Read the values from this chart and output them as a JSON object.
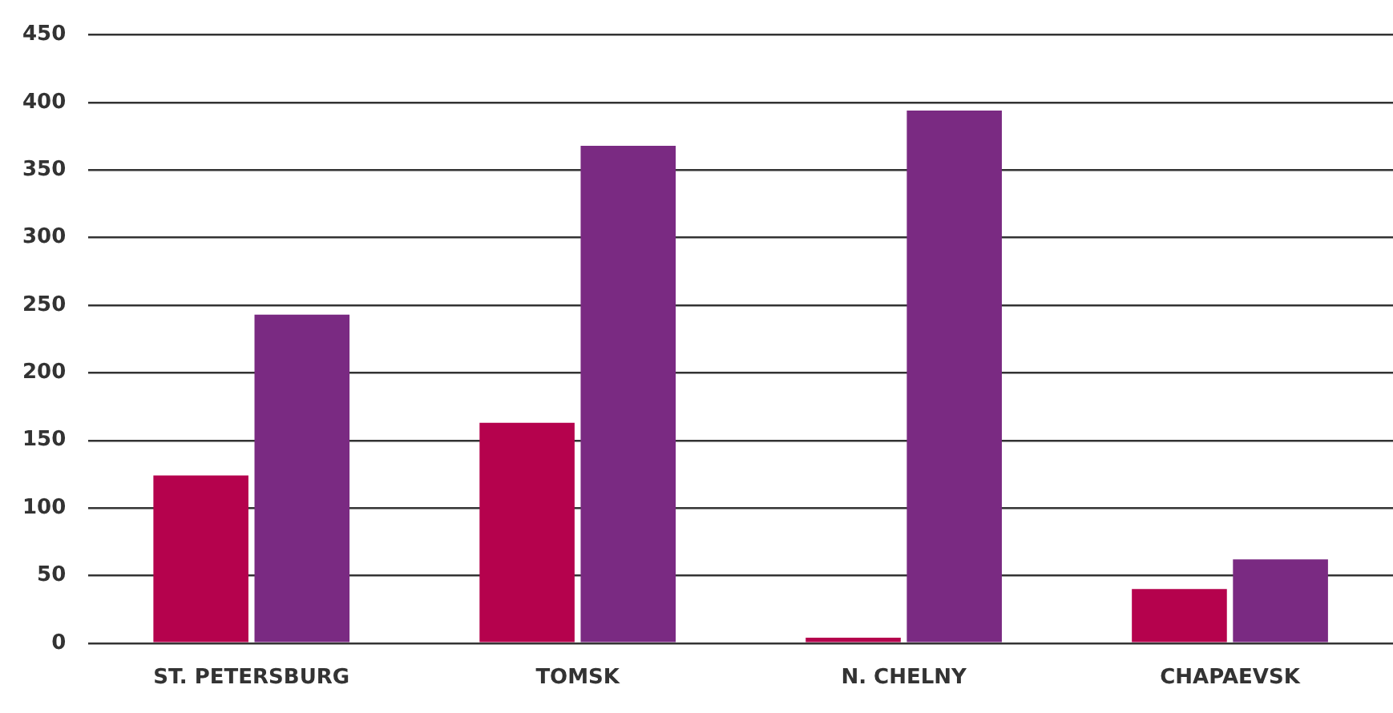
{
  "chart_data": {
    "type": "bar",
    "categories": [
      "ST. PETERSBURG",
      "TOMSK",
      "N. CHELNY",
      "CHAPAEVSK"
    ],
    "series": [
      {
        "color": "#b5024d",
        "values": [
          124,
          163,
          4,
          40
        ]
      },
      {
        "color": "#7a2a82",
        "values": [
          243,
          368,
          394,
          62
        ]
      }
    ],
    "ylim": [
      0,
      450
    ],
    "yticks": [
      0,
      50,
      100,
      150,
      200,
      250,
      300,
      350,
      400,
      450
    ],
    "grid": "y",
    "legend": false
  }
}
